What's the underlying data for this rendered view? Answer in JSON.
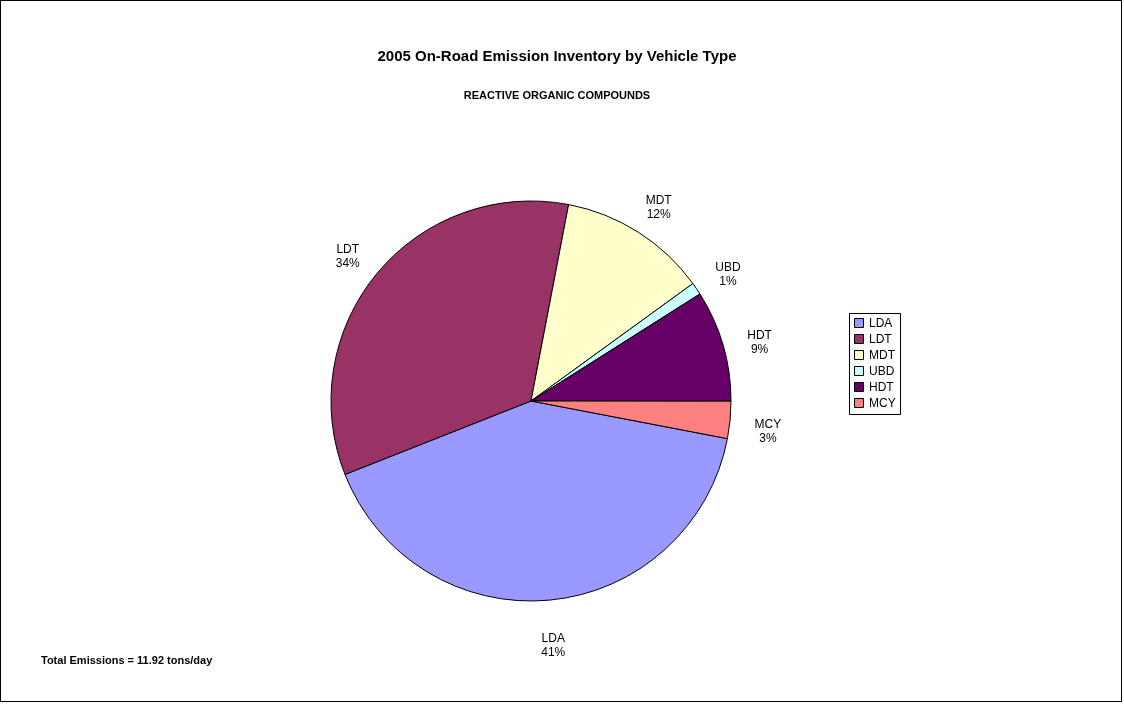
{
  "chart_data": {
    "type": "pie",
    "title": "2005 On-Road Emission Inventory by Vehicle Type",
    "subtitle": "REACTIVE ORGANIC COMPOUNDS",
    "categories": [
      "LDA",
      "LDT",
      "MDT",
      "UBD",
      "HDT",
      "MCY"
    ],
    "values": [
      41,
      34,
      12,
      1,
      9,
      3
    ],
    "value_labels": [
      "41%",
      "34%",
      "12%",
      "1%",
      "9%",
      "3%"
    ],
    "colors": [
      "#9999ff",
      "#993366",
      "#ffffcc",
      "#ccffff",
      "#660066",
      "#ff8080"
    ],
    "legend": "right",
    "annotations": [
      "Total Emissions = 11.92 tons/day"
    ]
  }
}
